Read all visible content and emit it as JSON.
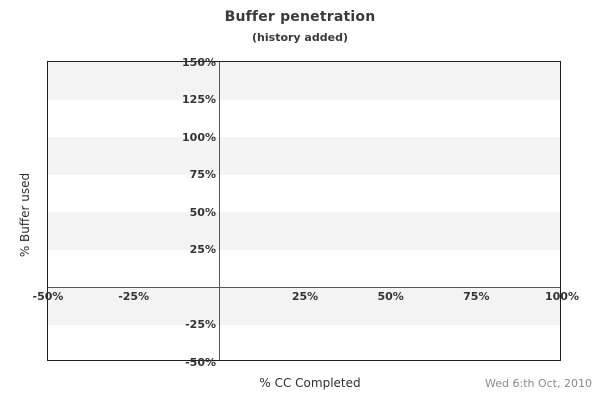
{
  "header": {
    "title": "Buffer penetration",
    "subtitle": "(history added)"
  },
  "footer": {
    "date": "Wed 6:th Oct, 2010"
  },
  "colors": {
    "stripe": "#f3f3f3",
    "zero_line": "#565656",
    "plot_border": "#1d1d1d",
    "tick_text": "#333333",
    "title_text": "#3a3a3a",
    "date_text": "#8a8a8a"
  },
  "chart_data": {
    "type": "scatter",
    "title": "Buffer penetration",
    "subtitle": "(history added)",
    "xlabel": "% CC Completed",
    "ylabel": "% Buffer used",
    "xlim": [
      -50,
      100
    ],
    "ylim": [
      -50,
      150
    ],
    "x_ticks": [
      {
        "value": -50,
        "label": "-50%"
      },
      {
        "value": -25,
        "label": "-25%"
      },
      {
        "value": 25,
        "label": "25%"
      },
      {
        "value": 50,
        "label": "50%"
      },
      {
        "value": 75,
        "label": "75%"
      },
      {
        "value": 100,
        "label": "100%"
      }
    ],
    "y_ticks": [
      {
        "value": 150,
        "label": "150%"
      },
      {
        "value": 125,
        "label": "125%"
      },
      {
        "value": 100,
        "label": "100%"
      },
      {
        "value": 75,
        "label": "75%"
      },
      {
        "value": 50,
        "label": "50%"
      },
      {
        "value": 25,
        "label": "25%"
      },
      {
        "value": -25,
        "label": "-25%"
      },
      {
        "value": -50,
        "label": "-50%"
      }
    ],
    "stripe_step": 25,
    "grid": "horizontal-stripes",
    "legend": "none",
    "series": []
  }
}
